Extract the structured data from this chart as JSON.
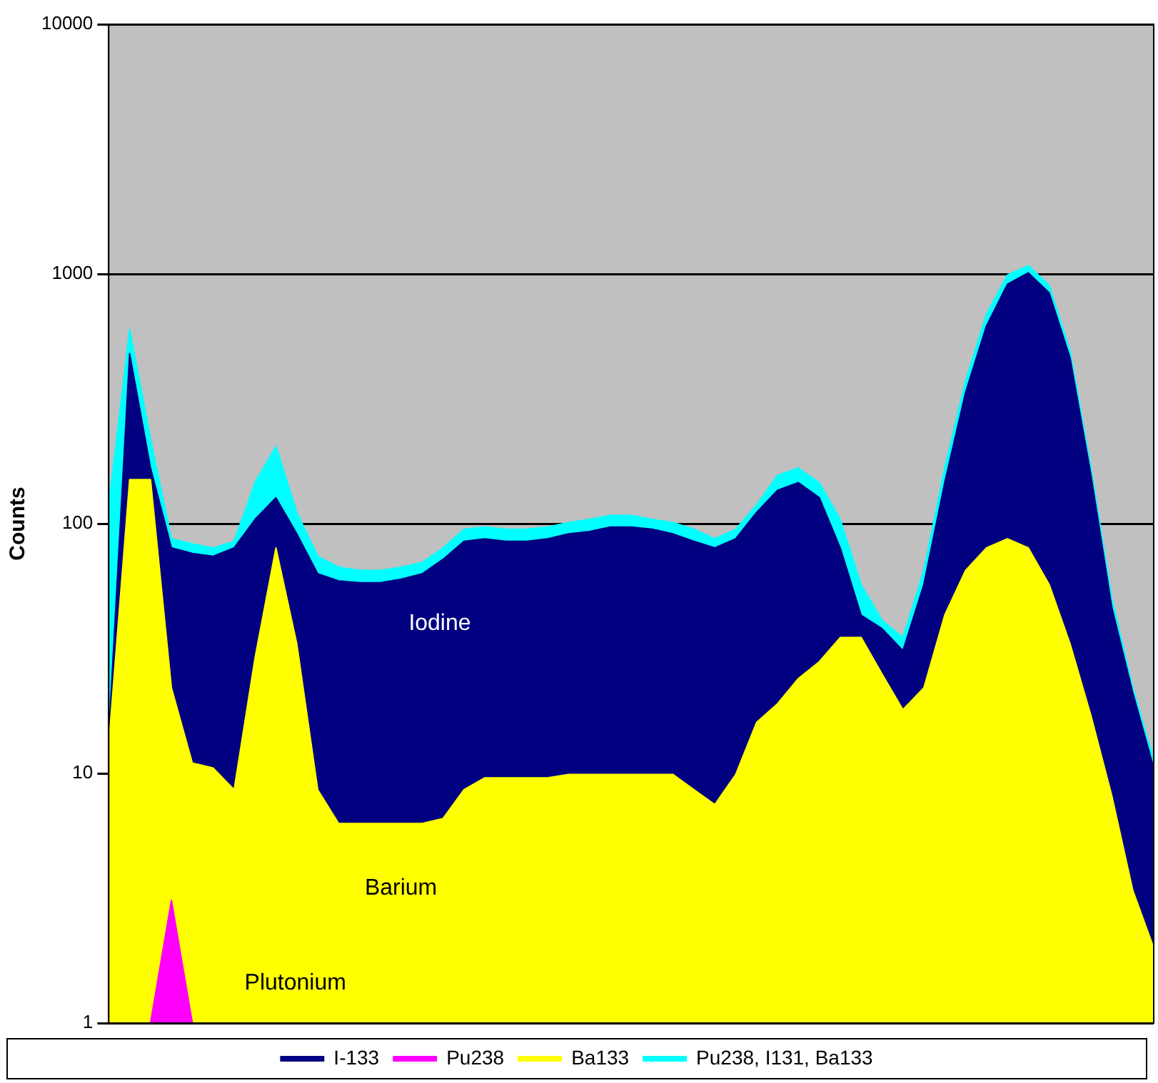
{
  "chart_data": {
    "type": "area",
    "ylabel": "Counts",
    "log": "y",
    "ylim": [
      1,
      10000
    ],
    "yticks": [
      1,
      10,
      100,
      1000,
      10000
    ],
    "grid": "y",
    "legend": "bottom",
    "tick_labels": "y",
    "marker": "none",
    "categories": [
      null,
      null,
      null,
      null,
      null,
      null,
      null,
      null,
      null,
      null,
      null,
      null,
      null,
      null,
      null,
      null,
      null,
      null,
      null,
      null,
      null,
      null,
      null,
      null,
      null,
      null,
      null,
      null,
      null,
      null,
      null,
      null,
      null,
      null,
      null,
      null,
      null,
      null,
      null,
      null,
      null,
      null,
      null,
      null,
      null,
      null,
      null,
      null,
      null,
      null,
      null
    ],
    "annotations": [
      "Iodine",
      "Barium",
      "Plutonium"
    ],
    "series": [
      {
        "name": "I-133",
        "color": "#000080",
        "values": [
          14,
          480,
          167,
          80,
          76,
          74,
          80,
          104,
          127,
          91,
          63,
          59,
          58,
          58,
          60,
          63,
          72,
          85,
          87,
          85,
          85,
          87,
          91,
          93,
          97,
          97,
          95,
          91,
          85,
          80,
          87,
          111,
          136,
          146,
          127,
          80,
          43,
          38,
          31,
          57,
          146,
          336,
          620,
          910,
          1010,
          840,
          460,
          156,
          46,
          21,
          10.5
        ]
      },
      {
        "name": "Pu238",
        "color": "#ff00ff",
        "values": [
          null,
          null,
          1,
          3.1,
          1,
          null,
          null,
          null,
          null,
          null,
          null,
          null,
          null,
          null,
          null,
          null,
          null,
          null,
          null,
          null,
          null,
          null,
          null,
          null,
          null,
          null,
          null,
          null,
          null,
          null,
          null,
          null,
          null,
          null,
          null,
          null,
          null,
          null,
          null,
          null,
          null,
          null,
          null,
          null,
          null,
          null,
          null,
          null,
          null,
          null,
          null
        ]
      },
      {
        "name": "Ba133",
        "color": "#ffff00",
        "values": [
          13,
          150,
          150,
          22,
          11,
          10.5,
          8.6,
          29,
          80,
          33,
          8.6,
          6.3,
          6.3,
          6.3,
          6.3,
          6.3,
          6.6,
          8.6,
          9.6,
          9.6,
          9.6,
          9.6,
          9.9,
          9.9,
          9.9,
          9.9,
          9.9,
          9.9,
          8.6,
          7.5,
          9.9,
          16,
          19,
          24,
          28,
          35,
          35,
          25,
          18,
          22,
          43,
          65,
          80,
          87,
          80,
          57,
          33,
          17,
          8.1,
          3.4,
          2.0
        ]
      },
      {
        "name": "Pu238, I131, Ba133",
        "color": "#00ffff",
        "values": [
          119,
          600,
          218,
          87,
          83,
          80,
          85,
          146,
          204,
          111,
          74,
          67,
          65,
          65,
          67,
          70,
          80,
          95,
          97,
          95,
          95,
          97,
          101,
          104,
          108,
          108,
          104,
          101,
          95,
          87,
          95,
          119,
          156,
          167,
          146,
          104,
          57,
          41,
          35,
          65,
          167,
          374,
          690,
          990,
          1080,
          900,
          490,
          167,
          50,
          22,
          11.3
        ]
      }
    ]
  }
}
